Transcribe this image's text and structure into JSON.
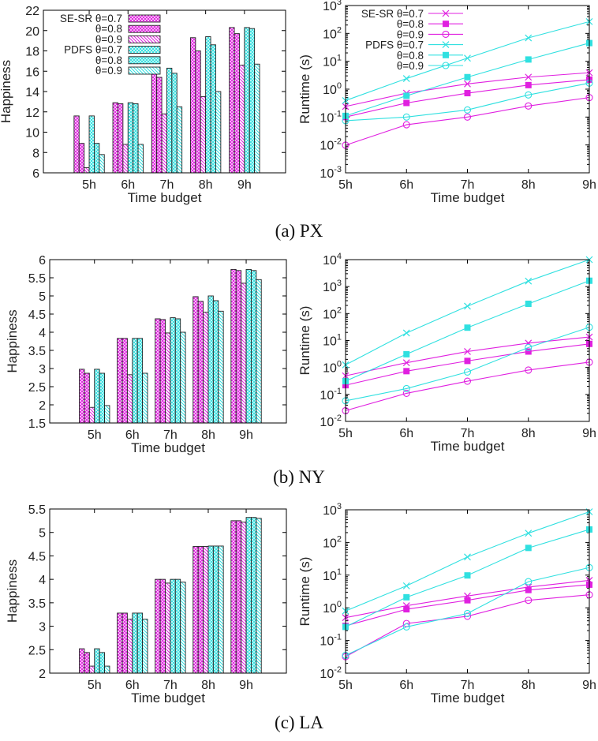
{
  "captions": [
    "(a) PX",
    "(b) NY",
    "(c) LA"
  ],
  "colors": {
    "se_sr": "#e020e0",
    "pdfs": "#30e0e0"
  },
  "chart_data": [
    {
      "type": "bar",
      "panel": "PX",
      "xlabel": "Time budget",
      "ylabel": "Happiness",
      "categories": [
        "5h",
        "6h",
        "7h",
        "8h",
        "9h"
      ],
      "ylim": [
        6,
        22
      ],
      "yticks": [
        6,
        8,
        10,
        12,
        14,
        16,
        18,
        20,
        22
      ],
      "yscale": "linear",
      "legend": [
        "SE-SR θ=0.7",
        "θ=0.8",
        "θ=0.9",
        "PDFS θ=0.7",
        "θ=0.8",
        "θ=0.9"
      ],
      "legend_position": "top-left",
      "series": [
        {
          "method": "SE-SR",
          "theta": 0.7,
          "values": [
            11.6,
            12.9,
            16.2,
            19.3,
            20.3
          ]
        },
        {
          "method": "SE-SR",
          "theta": 0.8,
          "values": [
            8.9,
            12.8,
            15.4,
            18.0,
            19.7
          ]
        },
        {
          "method": "SE-SR",
          "theta": 0.9,
          "values": [
            6.5,
            8.8,
            11.8,
            13.5,
            16.6
          ]
        },
        {
          "method": "PDFS",
          "theta": 0.7,
          "values": [
            11.6,
            12.9,
            16.3,
            19.4,
            20.3
          ]
        },
        {
          "method": "PDFS",
          "theta": 0.8,
          "values": [
            8.9,
            12.8,
            15.8,
            18.6,
            20.2
          ]
        },
        {
          "method": "PDFS",
          "theta": 0.9,
          "values": [
            7.8,
            8.8,
            12.5,
            14.0,
            16.7
          ]
        }
      ]
    },
    {
      "type": "line",
      "panel": "PX",
      "xlabel": "Time budget",
      "ylabel": "Runtime (s)",
      "categories": [
        "5h",
        "6h",
        "7h",
        "8h",
        "9h"
      ],
      "ylim": [
        0.001,
        1000
      ],
      "yscale": "log",
      "yticks_exp": [
        -3,
        -2,
        -1,
        0,
        1,
        2,
        3
      ],
      "legend": [
        "SE-SR θ=0.7",
        "θ=0.8",
        "θ=0.9",
        "PDFS θ=0.7",
        "θ=0.8",
        "θ=0.9"
      ],
      "legend_position": "top-left",
      "series": [
        {
          "method": "SE-SR",
          "theta": 0.7,
          "marker": "x",
          "values": [
            0.24,
            0.72,
            1.55,
            2.7,
            3.9
          ]
        },
        {
          "method": "SE-SR",
          "theta": 0.8,
          "marker": "square",
          "values": [
            0.1,
            0.32,
            0.72,
            1.4,
            2.2
          ]
        },
        {
          "method": "SE-SR",
          "theta": 0.9,
          "marker": "circle",
          "values": [
            0.0098,
            0.053,
            0.1,
            0.25,
            0.5
          ]
        },
        {
          "method": "PDFS",
          "theta": 0.7,
          "marker": "x",
          "values": [
            0.39,
            2.4,
            13,
            69,
            265
          ]
        },
        {
          "method": "PDFS",
          "theta": 0.8,
          "marker": "square",
          "values": [
            0.11,
            0.58,
            2.7,
            11.6,
            45
          ]
        },
        {
          "method": "PDFS",
          "theta": 0.9,
          "marker": "circle",
          "values": [
            0.074,
            0.1,
            0.18,
            0.62,
            1.65
          ]
        }
      ]
    },
    {
      "type": "bar",
      "panel": "NY",
      "xlabel": "Time budget",
      "ylabel": "Happiness",
      "categories": [
        "5h",
        "6h",
        "7h",
        "8h",
        "9h"
      ],
      "ylim": [
        1.5,
        6
      ],
      "yticks": [
        1.5,
        2,
        2.5,
        3,
        3.5,
        4,
        4.5,
        5,
        5.5,
        6
      ],
      "yscale": "linear",
      "series": [
        {
          "method": "SE-SR",
          "theta": 0.7,
          "values": [
            2.98,
            3.83,
            4.37,
            4.98,
            5.73
          ]
        },
        {
          "method": "SE-SR",
          "theta": 0.8,
          "values": [
            2.87,
            3.83,
            4.35,
            4.85,
            5.7
          ]
        },
        {
          "method": "SE-SR",
          "theta": 0.9,
          "values": [
            1.93,
            2.83,
            3.98,
            4.55,
            5.35
          ]
        },
        {
          "method": "PDFS",
          "theta": 0.7,
          "values": [
            2.98,
            3.83,
            4.4,
            5.0,
            5.73
          ]
        },
        {
          "method": "PDFS",
          "theta": 0.8,
          "values": [
            2.87,
            3.83,
            4.37,
            4.87,
            5.7
          ]
        },
        {
          "method": "PDFS",
          "theta": 0.9,
          "values": [
            1.98,
            2.87,
            4.0,
            4.58,
            5.45
          ]
        }
      ]
    },
    {
      "type": "line",
      "panel": "NY",
      "xlabel": "Time budget",
      "ylabel": "Runtime (s)",
      "categories": [
        "5h",
        "6h",
        "7h",
        "8h",
        "9h"
      ],
      "ylim": [
        0.01,
        10000
      ],
      "yscale": "log",
      "yticks_exp": [
        -2,
        -1,
        0,
        1,
        2,
        3,
        4
      ],
      "series": [
        {
          "method": "SE-SR",
          "theta": 0.7,
          "marker": "x",
          "values": [
            0.49,
            1.5,
            3.9,
            8,
            13.5
          ]
        },
        {
          "method": "SE-SR",
          "theta": 0.8,
          "marker": "square",
          "values": [
            0.22,
            0.73,
            1.75,
            3.9,
            7.5
          ]
        },
        {
          "method": "SE-SR",
          "theta": 0.9,
          "marker": "circle",
          "values": [
            0.025,
            0.11,
            0.31,
            0.8,
            1.57
          ]
        },
        {
          "method": "PDFS",
          "theta": 0.7,
          "marker": "x",
          "values": [
            1.25,
            19,
            188,
            1600,
            10000
          ]
        },
        {
          "method": "PDFS",
          "theta": 0.8,
          "marker": "square",
          "values": [
            0.31,
            3.1,
            30,
            230,
            1650
          ]
        },
        {
          "method": "PDFS",
          "theta": 0.9,
          "marker": "circle",
          "values": [
            0.058,
            0.165,
            0.68,
            5.5,
            31
          ]
        }
      ]
    },
    {
      "type": "bar",
      "panel": "LA",
      "xlabel": "Time budget",
      "ylabel": "Happiness",
      "categories": [
        "5h",
        "6h",
        "7h",
        "8h",
        "9h"
      ],
      "ylim": [
        2,
        5.5
      ],
      "yticks": [
        2,
        2.5,
        3,
        3.5,
        4,
        4.5,
        5,
        5.5
      ],
      "yscale": "linear",
      "series": [
        {
          "method": "SE-SR",
          "theta": 0.7,
          "values": [
            2.52,
            3.28,
            4.0,
            4.7,
            5.25
          ]
        },
        {
          "method": "SE-SR",
          "theta": 0.8,
          "values": [
            2.44,
            3.28,
            4.0,
            4.7,
            5.25
          ]
        },
        {
          "method": "SE-SR",
          "theta": 0.9,
          "values": [
            2.15,
            3.15,
            3.92,
            4.7,
            5.22
          ]
        },
        {
          "method": "PDFS",
          "theta": 0.7,
          "values": [
            2.52,
            3.28,
            4.0,
            4.71,
            5.32
          ]
        },
        {
          "method": "PDFS",
          "theta": 0.8,
          "values": [
            2.44,
            3.28,
            4.0,
            4.71,
            5.32
          ]
        },
        {
          "method": "PDFS",
          "theta": 0.9,
          "values": [
            2.15,
            3.15,
            3.94,
            4.71,
            5.3
          ]
        }
      ]
    },
    {
      "type": "line",
      "panel": "LA",
      "xlabel": "Time budget",
      "ylabel": "Runtime (s)",
      "categories": [
        "5h",
        "6h",
        "7h",
        "8h",
        "9h"
      ],
      "ylim": [
        0.01,
        1000
      ],
      "yscale": "log",
      "yticks_exp": [
        -2,
        -1,
        0,
        1,
        2,
        3
      ],
      "series": [
        {
          "method": "SE-SR",
          "theta": 0.7,
          "marker": "x",
          "values": [
            0.5,
            1.16,
            2.3,
            4.3,
            6.9
          ]
        },
        {
          "method": "SE-SR",
          "theta": 0.8,
          "marker": "square",
          "values": [
            0.28,
            0.9,
            1.7,
            3.5,
            5.1
          ]
        },
        {
          "method": "SE-SR",
          "theta": 0.9,
          "marker": "circle",
          "values": [
            0.032,
            0.33,
            0.55,
            1.7,
            2.5
          ]
        },
        {
          "method": "PDFS",
          "theta": 0.7,
          "marker": "x",
          "values": [
            0.8,
            4.7,
            36,
            192,
            870
          ]
        },
        {
          "method": "PDFS",
          "theta": 0.8,
          "marker": "square",
          "values": [
            0.26,
            2.1,
            9.8,
            68,
            250
          ]
        },
        {
          "method": "PDFS",
          "theta": 0.9,
          "marker": "circle",
          "values": [
            0.035,
            0.26,
            0.67,
            6.3,
            17
          ]
        }
      ]
    }
  ]
}
